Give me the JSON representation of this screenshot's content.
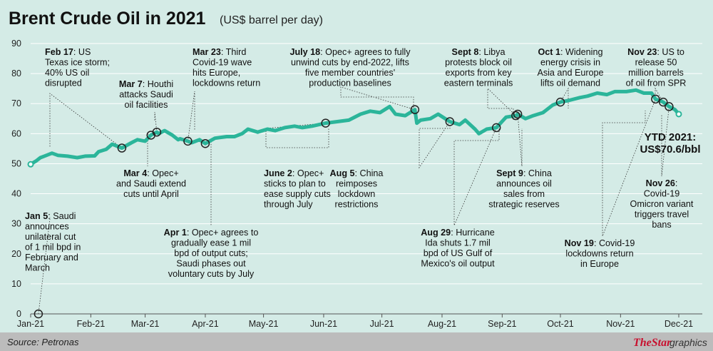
{
  "chart_data": {
    "type": "line",
    "title": "Brent Crude Oil in 2021",
    "subtitle": "(US$ barrel per day)",
    "ylim": [
      0,
      90
    ],
    "yticks": [
      0,
      10,
      20,
      30,
      40,
      50,
      60,
      70,
      80,
      90
    ],
    "xticks": [
      "Jan-21",
      "Feb-21",
      "Mar-21",
      "Apr-21",
      "May-21",
      "Jun-21",
      "Jul-21",
      "Aug-21",
      "Sep-21",
      "Oct-21",
      "Nov-21",
      "Dec-21"
    ],
    "line_color": "#2bb59a",
    "marker_color": "#222222",
    "grid": true,
    "series": [
      {
        "x": [
          "2021-01-01",
          "2021-01-04",
          "2021-01-06",
          "2021-01-08",
          "2021-01-12",
          "2021-01-15",
          "2021-01-20",
          "2021-01-25",
          "2021-01-29",
          "2021-02-03",
          "2021-02-05",
          "2021-02-09",
          "2021-02-12",
          "2021-02-17",
          "2021-02-22",
          "2021-02-25",
          "2021-03-01",
          "2021-03-04",
          "2021-03-07",
          "2021-03-08",
          "2021-03-11",
          "2021-03-15",
          "2021-03-18",
          "2021-03-19",
          "2021-03-23",
          "2021-03-25",
          "2021-03-29",
          "2021-04-01",
          "2021-04-06",
          "2021-04-12",
          "2021-04-16",
          "2021-04-20",
          "2021-04-23",
          "2021-04-28",
          "2021-05-03",
          "2021-05-07",
          "2021-05-12",
          "2021-05-17",
          "2021-05-21",
          "2021-05-26",
          "2021-06-02",
          "2021-06-08",
          "2021-06-14",
          "2021-06-20",
          "2021-06-25",
          "2021-06-30",
          "2021-07-05",
          "2021-07-08",
          "2021-07-13",
          "2021-07-18",
          "2021-07-19",
          "2021-07-21",
          "2021-07-26",
          "2021-07-30",
          "2021-08-05",
          "2021-08-10",
          "2021-08-13",
          "2021-08-18",
          "2021-08-20",
          "2021-08-24",
          "2021-08-29",
          "2021-09-03",
          "2021-09-08",
          "2021-09-09",
          "2021-09-13",
          "2021-09-17",
          "2021-09-22",
          "2021-09-27",
          "2021-10-01",
          "2021-10-05",
          "2021-10-11",
          "2021-10-15",
          "2021-10-20",
          "2021-10-25",
          "2021-10-29",
          "2021-11-04",
          "2021-11-09",
          "2021-11-13",
          "2021-11-17",
          "2021-11-19",
          "2021-11-21",
          "2021-11-23",
          "2021-11-24",
          "2021-11-26",
          "2021-11-29",
          "2021-12-01"
        ],
        "values": [
          49.8,
          51.0,
          52.0,
          52.5,
          53.5,
          52.8,
          52.5,
          52.0,
          52.5,
          52.6,
          54.0,
          54.8,
          56.5,
          55.2,
          57.0,
          58.0,
          57.5,
          59.5,
          60.5,
          60.0,
          61.0,
          59.5,
          58.0,
          58.3,
          57.5,
          57.0,
          58.0,
          56.7,
          58.5,
          59.0,
          59.0,
          60.0,
          61.5,
          60.5,
          61.5,
          61.0,
          62.0,
          62.5,
          62.0,
          62.5,
          63.5,
          64.0,
          64.5,
          66.5,
          67.5,
          67.0,
          69.0,
          66.5,
          66.0,
          68.0,
          63.5,
          64.5,
          65.0,
          66.5,
          64.0,
          63.0,
          64.5,
          61.5,
          60.0,
          61.5,
          62.0,
          65.5,
          66.0,
          66.5,
          65.0,
          66.0,
          67.0,
          69.5,
          70.5,
          71.0,
          72.0,
          72.5,
          73.5,
          73.0,
          74.0,
          74.0,
          74.5,
          73.5,
          73.5,
          71.5,
          71.0,
          70.5,
          70.0,
          69.0,
          68.0,
          66.5
        ]
      }
    ],
    "annotations": [
      {
        "date_label": "Jan 5",
        "text": [
          "unilateral cut",
          "of 1 mil bpd in",
          "February and",
          "March"
        ],
        "first_rest": ": Saudi",
        "line2": "announces"
      },
      {
        "date_label": "Feb 17",
        "first_rest": ": US",
        "text": [
          "Texas ice storm;",
          "40% US oil",
          "disrupted"
        ]
      },
      {
        "date_label": "Mar 4",
        "first_rest": ": Opec+",
        "text": [
          "and Saudi extend",
          "cuts until April"
        ]
      },
      {
        "date_label": "Mar 7",
        "first_rest": ": Houthi",
        "text": [
          "attacks Saudi",
          "oil facilities"
        ]
      },
      {
        "date_label": "Mar 23",
        "first_rest": ": Third",
        "text": [
          "Covid-19 wave",
          "hits Europe,",
          "lockdowns return"
        ]
      },
      {
        "date_label": "Apr 1",
        "first_rest": ": Opec+ agrees to",
        "text": [
          "gradually ease 1 mil",
          "bpd of output cuts;",
          "Saudi phases out",
          "voluntary cuts by July"
        ]
      },
      {
        "date_label": "June 2",
        "first_rest": ": Opec+",
        "text": [
          "sticks to plan to",
          "ease supply cuts",
          "through July"
        ]
      },
      {
        "date_label": "July 18",
        "first_rest": ": Opec+ agrees to fully",
        "text": [
          "unwind cuts by end-2022, lifts",
          "five member countries'",
          "production baselines"
        ]
      },
      {
        "date_label": "Aug 5",
        "first_rest": ": China",
        "text": [
          "reimposes",
          "lockdown",
          "restrictions"
        ]
      },
      {
        "date_label": "Aug 29",
        "first_rest": ": Hurricane",
        "text": [
          "Ida shuts 1.7 mil",
          "bpd of US Gulf of",
          "Mexico's oil output"
        ]
      },
      {
        "date_label": "Sept 8",
        "first_rest": ": Libya",
        "text": [
          "protests block oil",
          "exports from key",
          "eastern terminals"
        ]
      },
      {
        "date_label": "Sept 9",
        "first_rest": ": China",
        "text": [
          "announces oil",
          "sales from",
          "strategic reserves"
        ]
      },
      {
        "date_label": "Oct 1",
        "first_rest": ": Widening",
        "text": [
          "energy crisis in",
          "Asia and Europe",
          "lifts oil demand"
        ]
      },
      {
        "date_label": "Nov 23",
        "first_rest": ": US to",
        "text": [
          "release 50",
          "million barrels",
          "of oil from SPR"
        ]
      },
      {
        "date_label": "Nov 19",
        "first_rest": ": Covid-19",
        "text": [
          "lockdowns return",
          "in Europe"
        ]
      },
      {
        "date_label": "Nov 26",
        "first_rest": ":",
        "text": [
          "Covid-19",
          "Omicron variant",
          "triggers travel",
          "bans"
        ]
      }
    ],
    "ytd_label": [
      "YTD 2021:",
      "US$70.6/bbl"
    ]
  },
  "footer": {
    "source": "Source: Petronas",
    "brand_main": "TheStar",
    "brand_sub": "graphics"
  }
}
